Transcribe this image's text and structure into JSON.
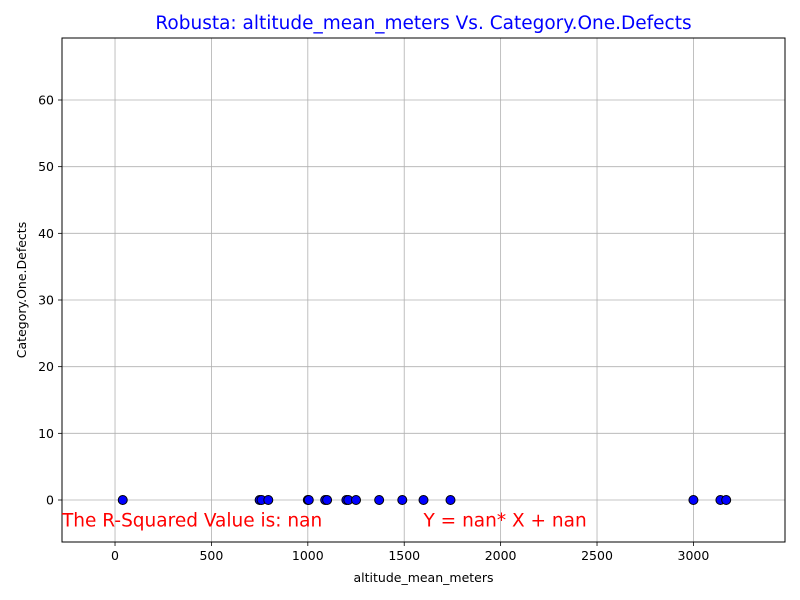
{
  "chart_data": {
    "type": "scatter",
    "title": "Robusta: altitude_mean_meters Vs. Category.One.Defects",
    "xlabel": "altitude_mean_meters",
    "ylabel": "Category.One.Defects",
    "xlim": [
      -275,
      3475
    ],
    "ylim": [
      -6.3,
      69.3
    ],
    "x_ticks": [
      0,
      500,
      1000,
      1500,
      2000,
      2500,
      3000
    ],
    "y_ticks": [
      0,
      10,
      20,
      30,
      40,
      50,
      60
    ],
    "grid": true,
    "colors": {
      "title": "#0000ff",
      "marker_fill": "#0000ff",
      "marker_edge": "#000000",
      "annotation": "#ff0000",
      "grid": "#b0b0b0"
    },
    "points": [
      {
        "x": 40,
        "y": 0
      },
      {
        "x": 750,
        "y": 0
      },
      {
        "x": 760,
        "y": 0
      },
      {
        "x": 795,
        "y": 0
      },
      {
        "x": 1000,
        "y": 0
      },
      {
        "x": 1005,
        "y": 0
      },
      {
        "x": 1090,
        "y": 0
      },
      {
        "x": 1100,
        "y": 0
      },
      {
        "x": 1200,
        "y": 0
      },
      {
        "x": 1210,
        "y": 0
      },
      {
        "x": 1250,
        "y": 0
      },
      {
        "x": 1370,
        "y": 0
      },
      {
        "x": 1490,
        "y": 0
      },
      {
        "x": 1600,
        "y": 0
      },
      {
        "x": 1740,
        "y": 0
      },
      {
        "x": 3000,
        "y": 0
      },
      {
        "x": 3140,
        "y": 0
      },
      {
        "x": 3170,
        "y": 0
      }
    ],
    "annotations": [
      {
        "text": "The R-Squared Value is: nan",
        "x": -275,
        "y": -4
      },
      {
        "text": "Y = nan* X + nan",
        "x": 1600,
        "y": -4
      }
    ]
  }
}
